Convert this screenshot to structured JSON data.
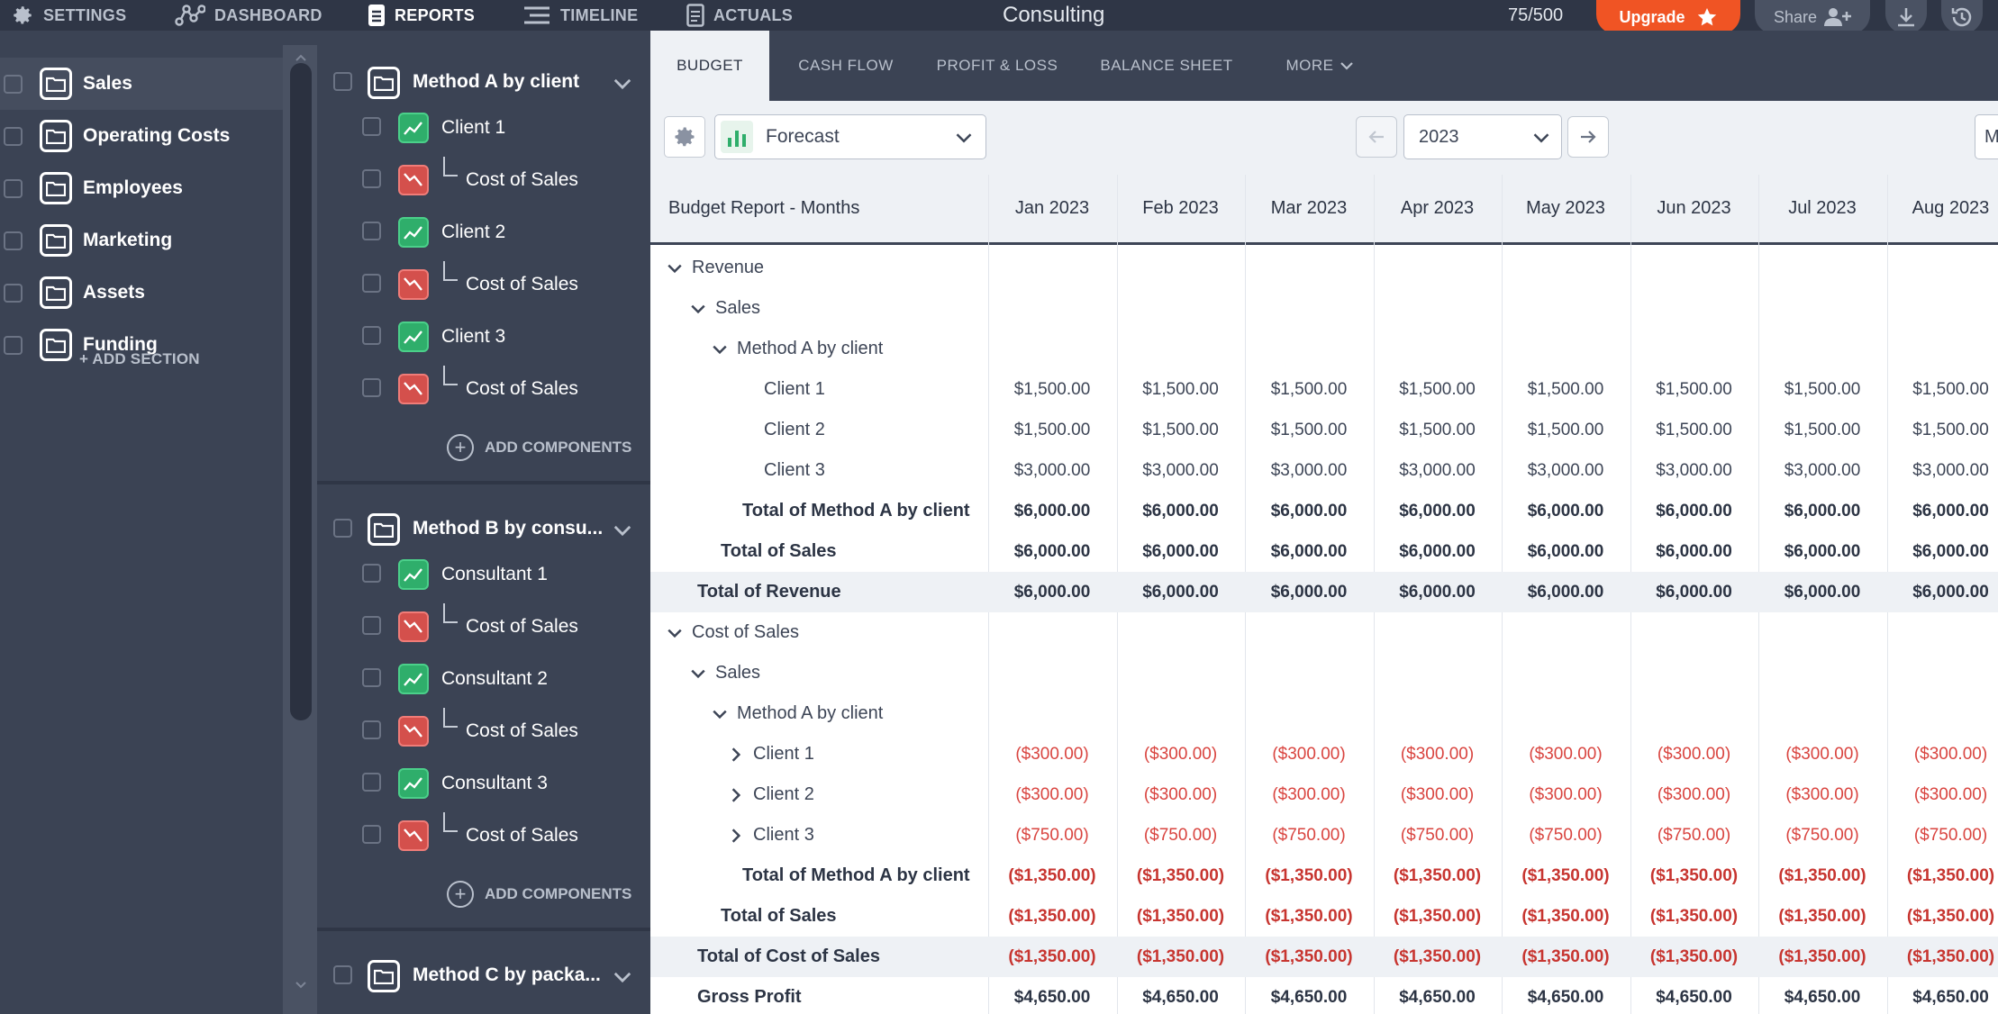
{
  "topbar": {
    "nav": [
      {
        "label": "SETTINGS",
        "icon": "gear-icon"
      },
      {
        "label": "DASHBOARD",
        "icon": "dashboard-icon"
      },
      {
        "label": "REPORTS",
        "icon": "reports-icon",
        "active": true
      },
      {
        "label": "TIMELINE",
        "icon": "timeline-icon"
      },
      {
        "label": "ACTUALS",
        "icon": "actuals-icon"
      }
    ],
    "title": "Consulting",
    "counter": "75/500",
    "upgrade_label": "Upgrade",
    "share_label": "Share",
    "colors": {
      "upgrade": "#f05424",
      "bar": "#2f3646"
    }
  },
  "sidebar": {
    "sections": [
      "Sales",
      "Operating Costs",
      "Employees",
      "Marketing",
      "Assets",
      "Funding"
    ],
    "selected": "Sales",
    "add_section_label": "+ ADD SECTION"
  },
  "components": {
    "groups": [
      {
        "label": "Method A by client",
        "items": [
          {
            "label": "Client 1",
            "type": "revenue"
          },
          {
            "label": "Cost of Sales",
            "type": "cost"
          },
          {
            "label": "Client 2",
            "type": "revenue"
          },
          {
            "label": "Cost of Sales",
            "type": "cost"
          },
          {
            "label": "Client 3",
            "type": "revenue"
          },
          {
            "label": "Cost of Sales",
            "type": "cost"
          }
        ],
        "add_label": "ADD COMPONENTS"
      },
      {
        "label": "Method B by consu...",
        "items": [
          {
            "label": "Consultant 1",
            "type": "revenue"
          },
          {
            "label": "Cost of Sales",
            "type": "cost"
          },
          {
            "label": "Consultant 2",
            "type": "revenue"
          },
          {
            "label": "Cost of Sales",
            "type": "cost"
          },
          {
            "label": "Consultant 3",
            "type": "revenue"
          },
          {
            "label": "Cost of Sales",
            "type": "cost"
          }
        ],
        "add_label": "ADD COMPONENTS"
      },
      {
        "label": "Method C by packa...",
        "items": [],
        "add_label": ""
      }
    ]
  },
  "report": {
    "tabs": [
      "BUDGET",
      "CASH FLOW",
      "PROFIT & LOSS",
      "BALANCE SHEET",
      "MORE"
    ],
    "active_tab": "BUDGET",
    "scenario": "Forecast",
    "year": "2023",
    "edge_box_text": "M",
    "header_label": "Budget Report - Months",
    "months": [
      "Jan 2023",
      "Feb 2023",
      "Mar 2023",
      "Apr 2023",
      "May 2023",
      "Jun 2023",
      "Jul 2023",
      "Aug 2023"
    ],
    "rows": [
      {
        "label": "Revenue",
        "indent": 0,
        "chevron": "down",
        "values": []
      },
      {
        "label": "Sales",
        "indent": 1,
        "chevron": "down",
        "values": []
      },
      {
        "label": "Method A by client",
        "indent": 2,
        "chevron": "down",
        "values": []
      },
      {
        "label": "Client 1",
        "indent": 3,
        "values": [
          "$1,500.00",
          "$1,500.00",
          "$1,500.00",
          "$1,500.00",
          "$1,500.00",
          "$1,500.00",
          "$1,500.00",
          "$1,500.00"
        ]
      },
      {
        "label": "Client 2",
        "indent": 3,
        "values": [
          "$1,500.00",
          "$1,500.00",
          "$1,500.00",
          "$1,500.00",
          "$1,500.00",
          "$1,500.00",
          "$1,500.00",
          "$1,500.00"
        ]
      },
      {
        "label": "Client 3",
        "indent": 3,
        "values": [
          "$3,000.00",
          "$3,000.00",
          "$3,000.00",
          "$3,000.00",
          "$3,000.00",
          "$3,000.00",
          "$3,000.00",
          "$3,000.00"
        ]
      },
      {
        "label": "Total of Method A by client",
        "indent": 4,
        "bold": true,
        "values": [
          "$6,000.00",
          "$6,000.00",
          "$6,000.00",
          "$6,000.00",
          "$6,000.00",
          "$6,000.00",
          "$6,000.00",
          "$6,000.00"
        ]
      },
      {
        "label": "Total of Sales",
        "indent": 5,
        "bold": true,
        "values": [
          "$6,000.00",
          "$6,000.00",
          "$6,000.00",
          "$6,000.00",
          "$6,000.00",
          "$6,000.00",
          "$6,000.00",
          "$6,000.00"
        ]
      },
      {
        "label": "Total of Revenue",
        "indent": 6,
        "bold": true,
        "shaded": true,
        "values": [
          "$6,000.00",
          "$6,000.00",
          "$6,000.00",
          "$6,000.00",
          "$6,000.00",
          "$6,000.00",
          "$6,000.00",
          "$6,000.00"
        ]
      },
      {
        "label": "Cost of Sales",
        "indent": 0,
        "chevron": "down",
        "values": []
      },
      {
        "label": "Sales",
        "indent": 1,
        "chevron": "down",
        "values": []
      },
      {
        "label": "Method A by client",
        "indent": 2,
        "chevron": "down",
        "values": []
      },
      {
        "label": "Client 1",
        "indent": 7,
        "chevron": "right",
        "neg": true,
        "values": [
          "($300.00)",
          "($300.00)",
          "($300.00)",
          "($300.00)",
          "($300.00)",
          "($300.00)",
          "($300.00)",
          "($300.00)"
        ]
      },
      {
        "label": "Client 2",
        "indent": 7,
        "chevron": "right",
        "neg": true,
        "values": [
          "($300.00)",
          "($300.00)",
          "($300.00)",
          "($300.00)",
          "($300.00)",
          "($300.00)",
          "($300.00)",
          "($300.00)"
        ]
      },
      {
        "label": "Client 3",
        "indent": 7,
        "chevron": "right",
        "neg": true,
        "values": [
          "($750.00)",
          "($750.00)",
          "($750.00)",
          "($750.00)",
          "($750.00)",
          "($750.00)",
          "($750.00)",
          "($750.00)"
        ]
      },
      {
        "label": "Total of Method A by client",
        "indent": 4,
        "bold": true,
        "neg": true,
        "values": [
          "($1,350.00)",
          "($1,350.00)",
          "($1,350.00)",
          "($1,350.00)",
          "($1,350.00)",
          "($1,350.00)",
          "($1,350.00)",
          "($1,350.00)"
        ]
      },
      {
        "label": "Total of Sales",
        "indent": 5,
        "bold": true,
        "neg": true,
        "values": [
          "($1,350.00)",
          "($1,350.00)",
          "($1,350.00)",
          "($1,350.00)",
          "($1,350.00)",
          "($1,350.00)",
          "($1,350.00)",
          "($1,350.00)"
        ]
      },
      {
        "label": "Total of Cost of Sales",
        "indent": 6,
        "bold": true,
        "neg": true,
        "shaded": true,
        "values": [
          "($1,350.00)",
          "($1,350.00)",
          "($1,350.00)",
          "($1,350.00)",
          "($1,350.00)",
          "($1,350.00)",
          "($1,350.00)",
          "($1,350.00)"
        ]
      },
      {
        "label": "Gross Profit",
        "indent": 6,
        "bold": true,
        "values": [
          "$4,650.00",
          "$4,650.00",
          "$4,650.00",
          "$4,650.00",
          "$4,650.00",
          "$4,650.00",
          "$4,650.00",
          "$4,650.00"
        ]
      }
    ],
    "colors": {
      "negative": "#d9443f",
      "revenue_icon": "#2fae6b",
      "cost_icon": "#d4504c"
    }
  }
}
